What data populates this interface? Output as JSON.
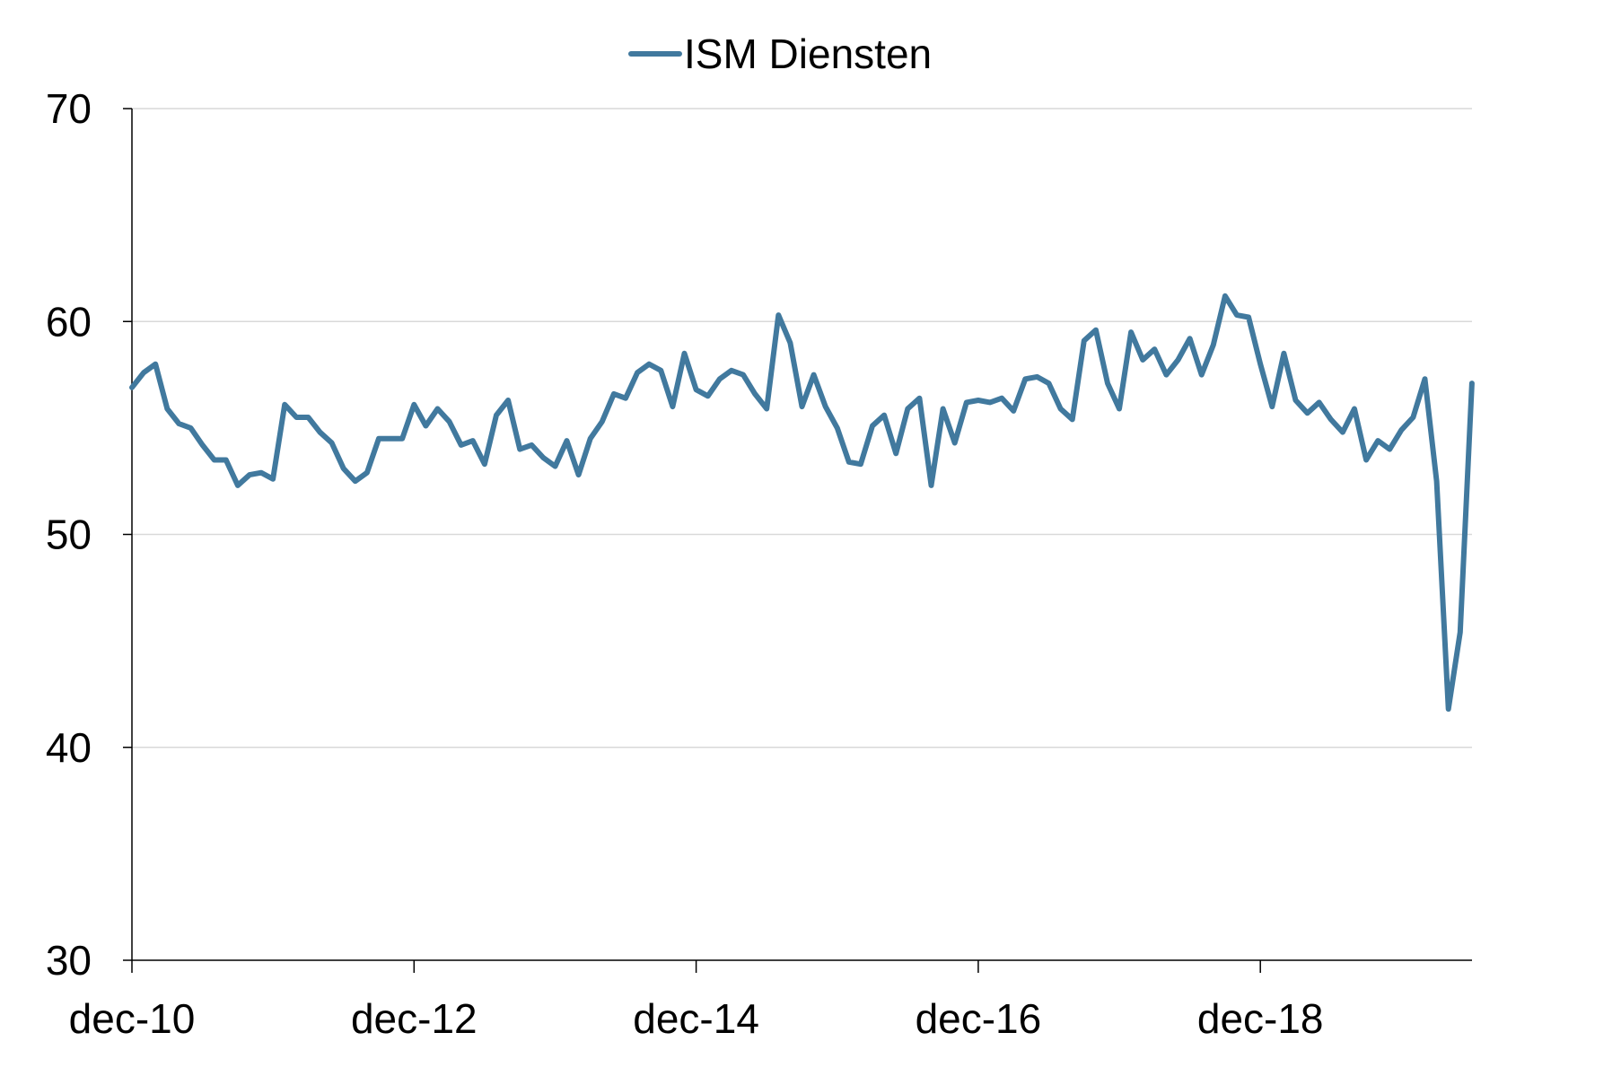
{
  "chart_data": {
    "type": "line",
    "title": "",
    "xlabel": "",
    "ylabel": "",
    "ylim": [
      30,
      70
    ],
    "y_ticks": [
      "30",
      "40",
      "50",
      "60",
      "70"
    ],
    "x_ticks": [
      "dec-10",
      "dec-12",
      "dec-14",
      "dec-16",
      "dec-18"
    ],
    "x_start": "dec-10",
    "x_end": "jun-20",
    "grid": true,
    "legend_position": "top-center",
    "series": [
      {
        "name": "ISM Diensten",
        "color": "#41799E",
        "values": [
          56.9,
          57.6,
          58.0,
          55.9,
          55.2,
          55.0,
          54.2,
          53.5,
          53.5,
          52.3,
          52.8,
          52.9,
          52.6,
          56.1,
          55.5,
          55.5,
          54.8,
          54.3,
          53.1,
          52.5,
          52.9,
          54.5,
          54.5,
          54.5,
          56.1,
          55.1,
          55.9,
          55.3,
          54.2,
          54.4,
          53.3,
          55.6,
          56.3,
          54.0,
          54.2,
          53.6,
          53.2,
          54.4,
          52.8,
          54.5,
          55.3,
          56.6,
          56.4,
          57.6,
          58.0,
          57.7,
          56.0,
          58.5,
          56.8,
          56.5,
          57.3,
          57.7,
          57.5,
          56.6,
          55.9,
          60.3,
          59.0,
          56.0,
          57.5,
          56.0,
          55.0,
          53.4,
          53.3,
          55.1,
          55.6,
          53.8,
          55.9,
          56.4,
          52.3,
          55.9,
          54.3,
          56.2,
          56.3,
          56.2,
          56.4,
          55.8,
          57.3,
          57.4,
          57.1,
          55.9,
          55.4,
          59.1,
          59.6,
          57.1,
          55.9,
          59.5,
          58.2,
          58.7,
          57.5,
          58.2,
          59.2,
          57.5,
          58.9,
          61.2,
          60.3,
          60.2,
          58.0,
          56.0,
          58.5,
          56.3,
          55.7,
          56.2,
          55.4,
          54.8,
          55.9,
          53.5,
          54.4,
          54.0,
          54.9,
          55.5,
          57.3,
          52.5,
          41.8,
          45.4,
          57.1
        ]
      }
    ]
  }
}
